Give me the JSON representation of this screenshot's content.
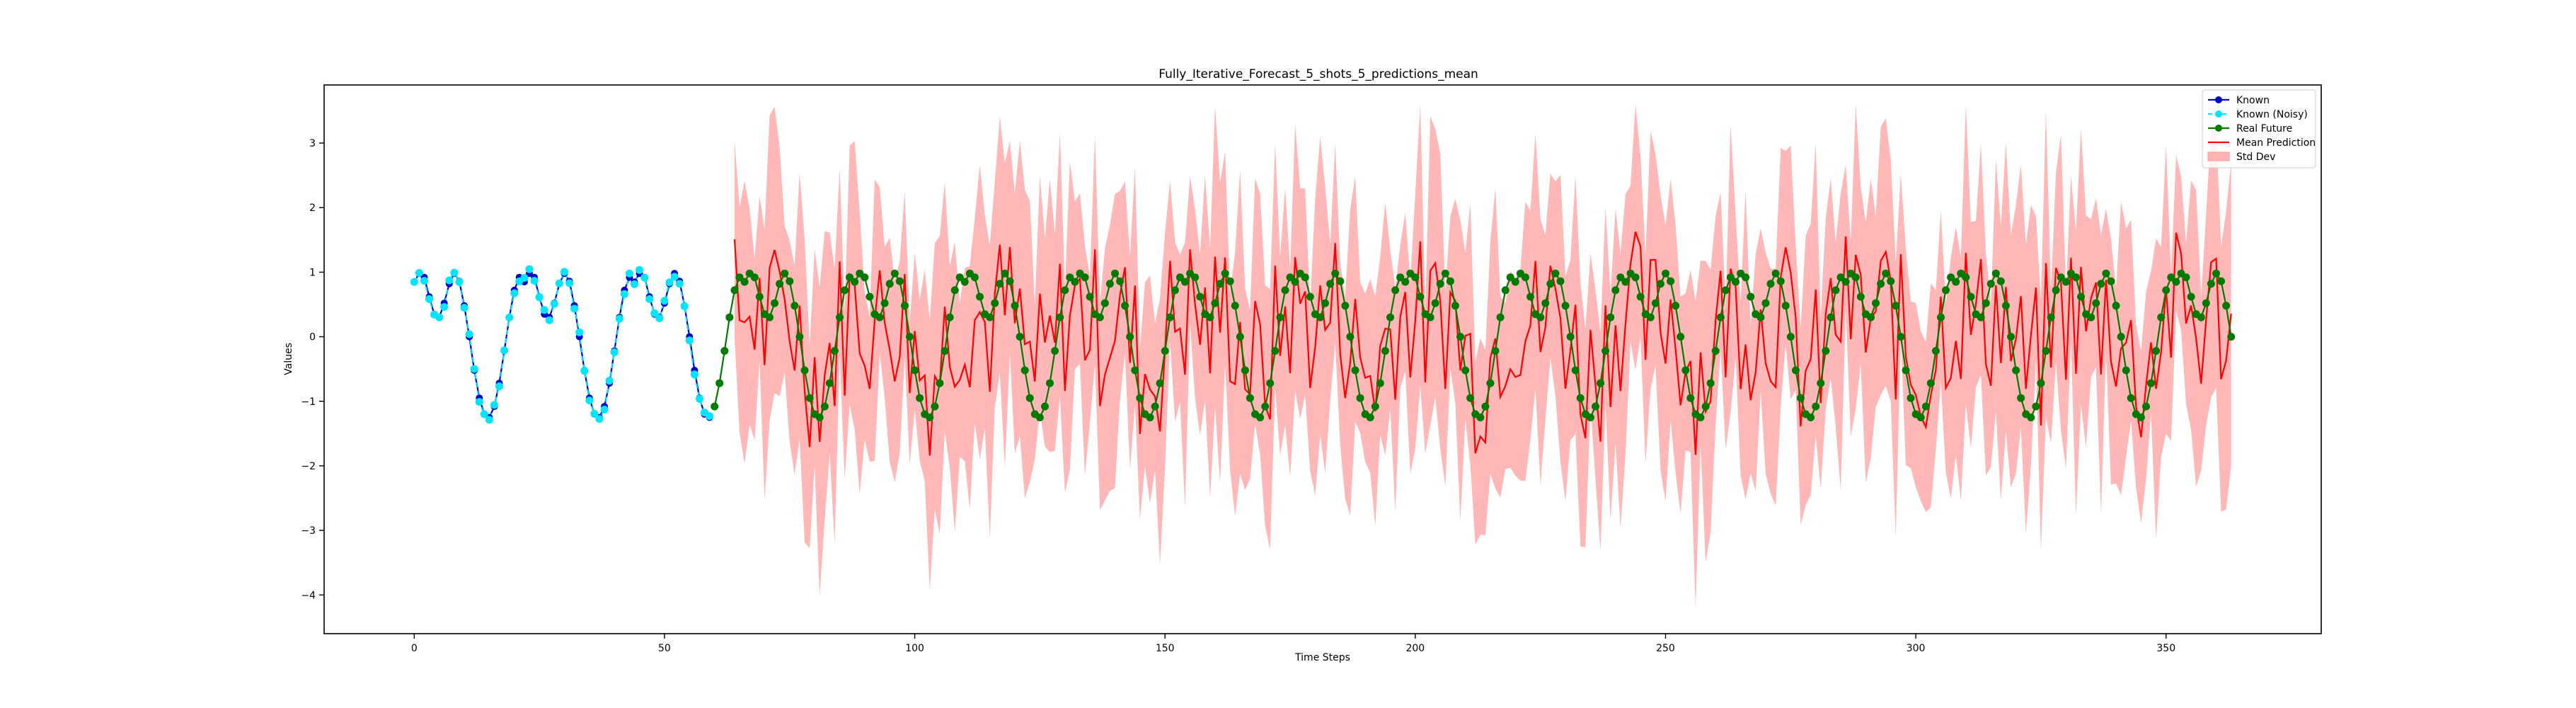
{
  "chart_data": {
    "type": "line",
    "title": "Fully_Iterative_Forecast_5_shots_5_predictions_mean",
    "xlabel": "Time Steps",
    "ylabel": "Values",
    "xlim": [
      -18,
      381
    ],
    "ylim": [
      -4.6,
      3.9
    ],
    "xticks": [
      0,
      50,
      100,
      150,
      200,
      250,
      300,
      350
    ],
    "yticks": [
      -4,
      -3,
      -2,
      -1,
      0,
      1,
      2,
      3
    ],
    "legend_position": "top-right",
    "grid": false,
    "signal": {
      "description": "Periodic signal with two peaks per cycle",
      "period": 22,
      "pattern": [
        0.85,
        0.98,
        0.92,
        0.62,
        0.35,
        0.3,
        0.52,
        0.82,
        0.98,
        0.86,
        0.48,
        0.0,
        -0.52,
        -0.95,
        -1.2,
        -1.25,
        -1.08,
        -0.72,
        -0.22,
        0.3,
        0.72,
        0.92
      ]
    },
    "series": [
      {
        "name": "Known",
        "color": "#0000cd",
        "marker": "circle",
        "x_start": 0,
        "x_end": 59
      },
      {
        "name": "Known (Noisy)",
        "color": "#00e5ff",
        "marker": "circle",
        "line_style": "dashed",
        "x_start": 0,
        "x_end": 59
      },
      {
        "name": "Real Future",
        "color": "#007a00",
        "marker": "circle",
        "x_start": 60,
        "x_end": 363
      },
      {
        "name": "Mean Prediction",
        "color": "#ff0000",
        "marker": "none",
        "x_start": 64,
        "x_end": 363
      },
      {
        "name": "Std Dev",
        "color": "#ffb3b3",
        "marker": "none",
        "fill": true,
        "x_start": 64,
        "x_end": 363
      }
    ],
    "prediction_stats": {
      "mean_range": [
        -2.5,
        2.2
      ],
      "band_range": [
        -4.3,
        3.6
      ]
    }
  }
}
